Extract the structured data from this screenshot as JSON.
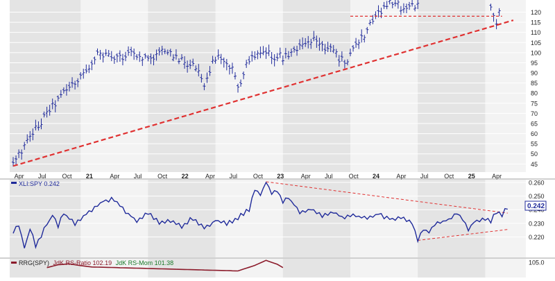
{
  "chart_data": [
    {
      "type": "ohlc",
      "panel": "price",
      "x_axis_labels": [
        "Apr",
        "Jul",
        "Oct",
        "21",
        "Apr",
        "Jul",
        "Oct",
        "22",
        "Apr",
        "Jul",
        "Oct",
        "23",
        "Apr",
        "Jul",
        "Oct",
        "24",
        "Apr",
        "Jul",
        "Oct",
        "25",
        "Apr"
      ],
      "y_ticks": [
        45,
        50,
        55,
        60,
        65,
        70,
        75,
        80,
        85,
        90,
        95,
        100,
        105,
        110,
        115,
        120
      ],
      "ylim": [
        41,
        126
      ],
      "grid": true,
      "key_points": [
        {
          "t": 0,
          "v": 45
        },
        {
          "t": 3,
          "v": 58
        },
        {
          "t": 6,
          "v": 70
        },
        {
          "t": 9,
          "v": 80
        },
        {
          "t": 12,
          "v": 88
        },
        {
          "t": 15,
          "v": 99
        },
        {
          "t": 18,
          "v": 97
        },
        {
          "t": 21,
          "v": 100
        },
        {
          "t": 24,
          "v": 97
        },
        {
          "t": 27,
          "v": 101
        },
        {
          "t": 30,
          "v": 96
        },
        {
          "t": 33,
          "v": 92
        },
        {
          "t": 34,
          "v": 85
        },
        {
          "t": 36,
          "v": 98
        },
        {
          "t": 39,
          "v": 91
        },
        {
          "t": 40,
          "v": 83
        },
        {
          "t": 42,
          "v": 97
        },
        {
          "t": 45,
          "v": 99
        },
        {
          "t": 48,
          "v": 98
        },
        {
          "t": 51,
          "v": 103
        },
        {
          "t": 54,
          "v": 106
        },
        {
          "t": 57,
          "v": 100
        },
        {
          "t": 59,
          "v": 95
        },
        {
          "t": 62,
          "v": 107
        },
        {
          "t": 65,
          "v": 120
        },
        {
          "t": 67,
          "v": 124
        },
        {
          "t": 70,
          "v": 122
        },
        {
          "t": 72,
          "v": 124
        }
      ],
      "key_points_late": [
        {
          "t": 85,
          "v": 124
        },
        {
          "t": 86,
          "v": 113
        },
        {
          "t": 86.5,
          "v": 121
        }
      ],
      "annotations": [
        {
          "type": "trendline",
          "style": "dashed",
          "color": "#e03030",
          "from": {
            "t": 0,
            "v": 44
          },
          "to": {
            "t": 89,
            "v": 116
          }
        },
        {
          "type": "horizontal",
          "style": "dashed",
          "color": "#e03030",
          "from": {
            "t": 60,
            "v": 118
          },
          "to": {
            "t": 87,
            "v": 118
          }
        }
      ]
    },
    {
      "type": "line",
      "panel": "relative-strength",
      "legend": "XLI:SPY 0.242",
      "last_value": "0.242",
      "y_ticks": [
        "0.220",
        "0.230",
        "0.240",
        "0.250",
        "0.260"
      ],
      "ylim": [
        0.205,
        0.262
      ],
      "series_color": "#1f2a9a",
      "key_points": [
        {
          "t": 0,
          "v": 0.224
        },
        {
          "t": 1,
          "v": 0.228
        },
        {
          "t": 2,
          "v": 0.212
        },
        {
          "t": 3,
          "v": 0.226
        },
        {
          "t": 4,
          "v": 0.214
        },
        {
          "t": 6,
          "v": 0.229
        },
        {
          "t": 7,
          "v": 0.236
        },
        {
          "t": 8,
          "v": 0.228
        },
        {
          "t": 9,
          "v": 0.237
        },
        {
          "t": 11,
          "v": 0.23
        },
        {
          "t": 14,
          "v": 0.24
        },
        {
          "t": 16,
          "v": 0.246
        },
        {
          "t": 18,
          "v": 0.248
        },
        {
          "t": 20,
          "v": 0.238
        },
        {
          "t": 22,
          "v": 0.232
        },
        {
          "t": 24,
          "v": 0.238
        },
        {
          "t": 26,
          "v": 0.23
        },
        {
          "t": 28,
          "v": 0.232
        },
        {
          "t": 30,
          "v": 0.228
        },
        {
          "t": 32,
          "v": 0.234
        },
        {
          "t": 34,
          "v": 0.227
        },
        {
          "t": 36,
          "v": 0.232
        },
        {
          "t": 38,
          "v": 0.23
        },
        {
          "t": 40,
          "v": 0.234
        },
        {
          "t": 42,
          "v": 0.24
        },
        {
          "t": 43,
          "v": 0.255
        },
        {
          "t": 44,
          "v": 0.251
        },
        {
          "t": 45,
          "v": 0.26
        },
        {
          "t": 46,
          "v": 0.252
        },
        {
          "t": 47,
          "v": 0.254
        },
        {
          "t": 48,
          "v": 0.246
        },
        {
          "t": 49,
          "v": 0.249
        },
        {
          "t": 51,
          "v": 0.238
        },
        {
          "t": 53,
          "v": 0.24
        },
        {
          "t": 55,
          "v": 0.236
        },
        {
          "t": 57,
          "v": 0.238
        },
        {
          "t": 59,
          "v": 0.234
        },
        {
          "t": 61,
          "v": 0.236
        },
        {
          "t": 63,
          "v": 0.233
        },
        {
          "t": 65,
          "v": 0.237
        },
        {
          "t": 67,
          "v": 0.233
        },
        {
          "t": 69,
          "v": 0.234
        },
        {
          "t": 71,
          "v": 0.23
        },
        {
          "t": 72,
          "v": 0.218
        },
        {
          "t": 73,
          "v": 0.226
        },
        {
          "t": 74,
          "v": 0.224
        },
        {
          "t": 75,
          "v": 0.23
        },
        {
          "t": 77,
          "v": 0.232
        },
        {
          "t": 79,
          "v": 0.237
        },
        {
          "t": 80,
          "v": 0.234
        },
        {
          "t": 81,
          "v": 0.226
        },
        {
          "t": 82,
          "v": 0.231
        },
        {
          "t": 84,
          "v": 0.234
        },
        {
          "t": 85,
          "v": 0.232
        },
        {
          "t": 86,
          "v": 0.238
        },
        {
          "t": 87,
          "v": 0.236
        },
        {
          "t": 88,
          "v": 0.242
        }
      ],
      "annotations": [
        {
          "type": "trendline",
          "style": "dashed",
          "color": "#e03030",
          "from": {
            "t": 45,
            "v": 0.2605
          },
          "to": {
            "t": 88,
            "v": 0.2375
          }
        },
        {
          "type": "trendline",
          "style": "dashed",
          "color": "#e03030",
          "from": {
            "t": 72,
            "v": 0.2175
          },
          "to": {
            "t": 88,
            "v": 0.2255
          }
        }
      ]
    },
    {
      "type": "line",
      "panel": "rrg",
      "legend_prefix": "RRG(SPY)",
      "legend_ratio": "JdK RS-Ratio 102.19",
      "legend_mom": "JdK RS-Mom 101.38",
      "y_ticks": [
        "105.0"
      ],
      "ylim": [
        98,
        106.5
      ],
      "series": [
        {
          "name": "JdK RS-Ratio",
          "color": "#8b1a2a",
          "key_points": [
            {
              "t": 6,
              "v": 102.5
            },
            {
              "t": 8,
              "v": 103.8
            },
            {
              "t": 10,
              "v": 104.2
            },
            {
              "t": 12,
              "v": 103.4
            },
            {
              "t": 14,
              "v": 102.8
            },
            {
              "t": 40,
              "v": 101.0
            },
            {
              "t": 43,
              "v": 103.5
            },
            {
              "t": 45,
              "v": 105.8
            },
            {
              "t": 47,
              "v": 104.0
            },
            {
              "t": 48,
              "v": 102.5
            }
          ]
        }
      ]
    }
  ]
}
